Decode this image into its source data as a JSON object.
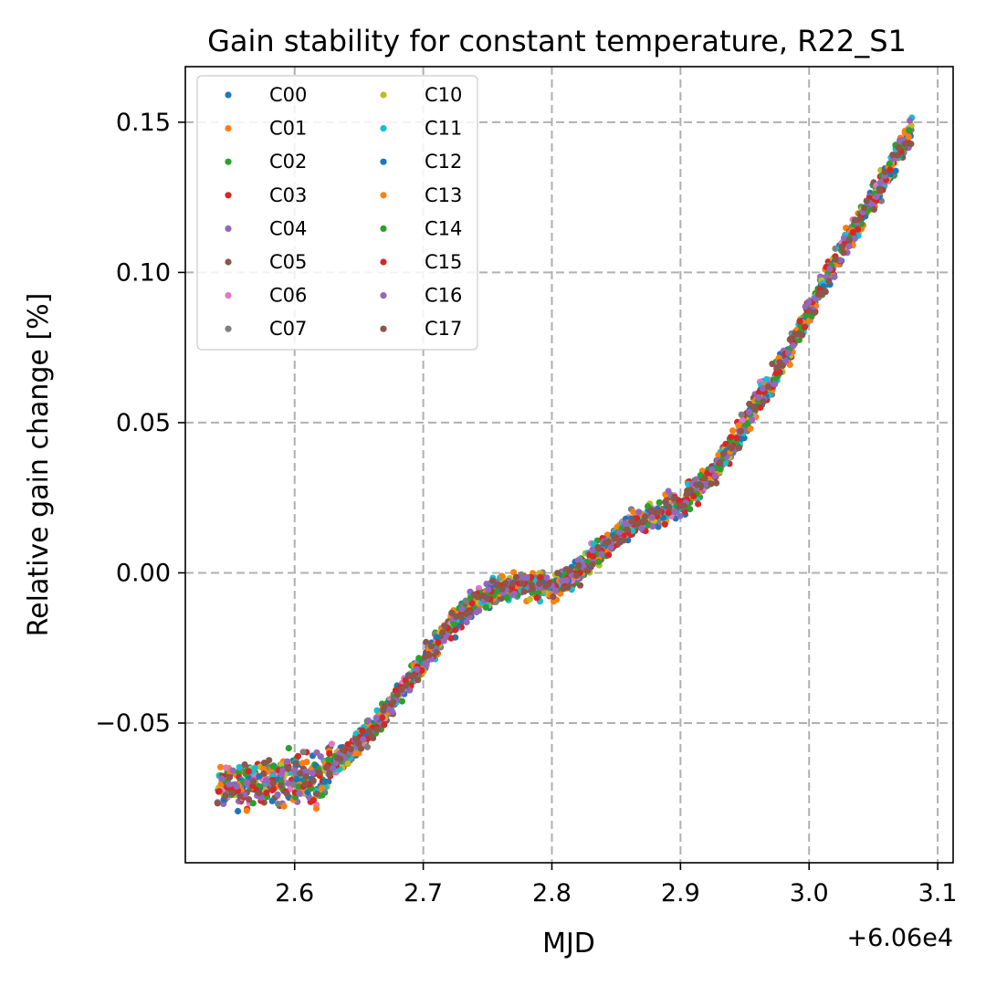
{
  "chart_data": {
    "type": "scatter",
    "title": "Gain stability for constant temperature, R22_S1",
    "xlabel": "MJD",
    "ylabel": "Relative gain change [%]",
    "x_offset_label": "+6.06e4",
    "x_offset": 60600,
    "xlim": [
      60602.515,
      60603.112
    ],
    "ylim": [
      -0.0965,
      0.1685
    ],
    "xticks": [
      60602.6,
      60602.7,
      60602.8,
      60602.9,
      60603.0,
      60603.1
    ],
    "xtick_labels": [
      "2.6",
      "2.7",
      "2.8",
      "2.9",
      "3.0",
      "3.1"
    ],
    "yticks": [
      -0.05,
      0.0,
      0.05,
      0.1,
      0.15
    ],
    "ytick_labels": [
      "−0.05",
      "0.00",
      "0.05",
      "0.10",
      "0.15"
    ],
    "grid": true,
    "legend_placement": "upper-left",
    "legend_columns": 2,
    "trend": {
      "x": [
        60602.54,
        60602.56,
        60602.58,
        60602.6,
        60602.62,
        60602.64,
        60602.66,
        60602.68,
        60602.7,
        60602.72,
        60602.74,
        60602.76,
        60602.78,
        60602.8,
        60602.82,
        60602.84,
        60602.86,
        60602.88,
        60602.9,
        60602.92,
        60602.94,
        60602.96,
        60602.98,
        60603.0,
        60603.02,
        60603.04,
        60603.06,
        60603.08
      ],
      "y": [
        -0.071,
        -0.071,
        -0.069,
        -0.068,
        -0.068,
        -0.06,
        -0.052,
        -0.041,
        -0.03,
        -0.018,
        -0.01,
        -0.005,
        -0.004,
        -0.005,
        0.0,
        0.008,
        0.016,
        0.02,
        0.023,
        0.03,
        0.042,
        0.057,
        0.07,
        0.087,
        0.103,
        0.118,
        0.132,
        0.148
      ]
    },
    "series": [
      {
        "name": "C00",
        "color": "#1f77b4"
      },
      {
        "name": "C01",
        "color": "#ff7f0e"
      },
      {
        "name": "C02",
        "color": "#2ca02c"
      },
      {
        "name": "C03",
        "color": "#d62728"
      },
      {
        "name": "C04",
        "color": "#9467bd"
      },
      {
        "name": "C05",
        "color": "#8c564b"
      },
      {
        "name": "C06",
        "color": "#e377c2"
      },
      {
        "name": "C07",
        "color": "#7f7f7f"
      },
      {
        "name": "C10",
        "color": "#bcbd22"
      },
      {
        "name": "C11",
        "color": "#17becf"
      },
      {
        "name": "C12",
        "color": "#1f77b4"
      },
      {
        "name": "C13",
        "color": "#ff7f0e"
      },
      {
        "name": "C14",
        "color": "#2ca02c"
      },
      {
        "name": "C15",
        "color": "#d62728"
      },
      {
        "name": "C16",
        "color": "#9467bd"
      },
      {
        "name": "C17",
        "color": "#8c564b"
      }
    ]
  }
}
